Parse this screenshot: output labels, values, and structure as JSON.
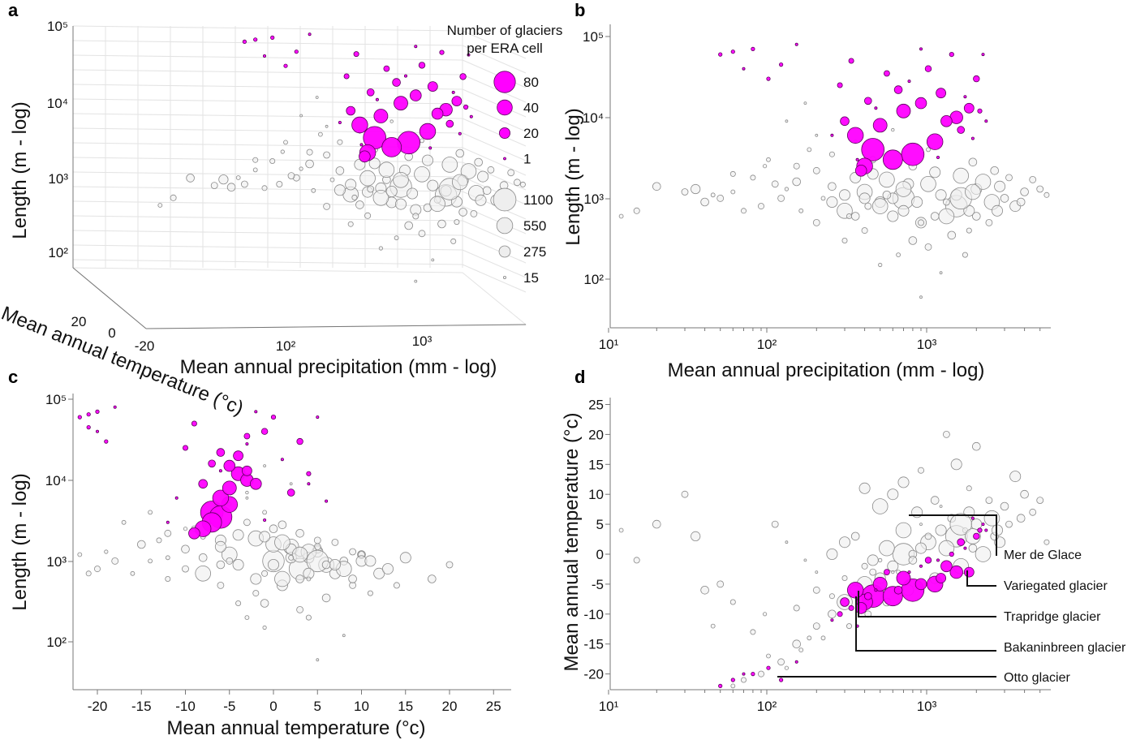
{
  "colors": {
    "surge": "#ff00ff",
    "surge_edge": "#5a005a",
    "nonsurge_fill": "#eeeeee",
    "nonsurge_edge": "#8a8a8a"
  },
  "legend": {
    "title_line1": "Number of glaciers",
    "title_line2": "per ERA cell",
    "surge_sizes": [
      "80",
      "40",
      "20",
      "1"
    ],
    "nonsurge_sizes": [
      "1100",
      "550",
      "275",
      "15"
    ]
  },
  "chart_data": [
    {
      "panel": "a",
      "type": "scatter",
      "xlabel": "Mean annual precipitation (mm - log)",
      "ylabel": "Length (m - log)",
      "zlabel": "Mean annual temperature (°c)",
      "x_scale": "log",
      "y_scale": "log",
      "x_ticks": [
        "10²",
        "10³"
      ],
      "y_ticks": [
        "10⁵",
        "10⁴",
        "10³",
        "10²"
      ],
      "z_ticks": [
        "20",
        "0",
        "-20"
      ],
      "grid": true,
      "legend": "top-right"
    },
    {
      "panel": "b",
      "type": "scatter",
      "xlabel": "Mean annual precipitation (mm - log)",
      "ylabel": "Length (m - log)",
      "x_scale": "log",
      "y_scale": "log",
      "xlim": [
        10,
        6000
      ],
      "ylim": [
        25,
        120000
      ],
      "x_ticks": [
        "10¹",
        "10²",
        "10³"
      ],
      "y_ticks": [
        "10⁵",
        "10⁴",
        "10³",
        "10²"
      ],
      "grid": false
    },
    {
      "panel": "c",
      "type": "scatter",
      "xlabel": "Mean annual temperature (°c)",
      "ylabel": "Length (m - log)",
      "x_scale": "linear",
      "y_scale": "log",
      "xlim": [
        -23,
        27
      ],
      "ylim": [
        25,
        120000
      ],
      "x_ticks": [
        "-20",
        "-15",
        "-10",
        "-5",
        "0",
        "5",
        "10",
        "15",
        "20",
        "25"
      ],
      "y_ticks": [
        "10⁵",
        "10⁴",
        "10³",
        "10²"
      ],
      "grid": false
    },
    {
      "panel": "d",
      "type": "scatter",
      "xlabel": "",
      "ylabel": "Mean annual temperature (°c)",
      "x_scale": "log",
      "y_scale": "linear",
      "xlim": [
        10,
        6000
      ],
      "ylim": [
        -23,
        27
      ],
      "x_ticks": [
        "10¹",
        "10²",
        "10³"
      ],
      "y_ticks": [
        "25",
        "20",
        "15",
        "10",
        "5",
        "0",
        "-5",
        "-10",
        "-15",
        "-20"
      ],
      "grid": false,
      "annotations": [
        "Mer de Glace",
        "Variegated glacier",
        "Trapridge glacier",
        "Bakaninbreen glacier",
        "Otto glacier"
      ]
    }
  ],
  "points_fields": [
    "precipitation_mm",
    "temperature_c",
    "length_m",
    "glacier_count"
  ],
  "surge_points": [
    [
      450,
      -7,
      4000,
      80
    ],
    [
      800,
      -6,
      3500,
      80
    ],
    [
      600,
      -7,
      3000,
      60
    ],
    [
      400,
      -8,
      2500,
      40
    ],
    [
      1100,
      -5,
      5000,
      40
    ],
    [
      350,
      -6,
      6000,
      40
    ],
    [
      500,
      -5,
      8000,
      30
    ],
    [
      700,
      -4,
      12000,
      30
    ],
    [
      1500,
      -3,
      10000,
      25
    ],
    [
      1300,
      -2,
      9000,
      20
    ],
    [
      900,
      -5,
      15000,
      20
    ],
    [
      380,
      -9,
      2200,
      20
    ],
    [
      1200,
      -4,
      20000,
      15
    ],
    [
      1800,
      -3,
      13000,
      15
    ],
    [
      300,
      -8,
      9000,
      12
    ],
    [
      650,
      -6,
      22000,
      10
    ],
    [
      420,
      -7,
      16000,
      8
    ],
    [
      1600,
      2,
      7000,
      8
    ],
    [
      2000,
      3,
      30000,
      6
    ],
    [
      1000,
      -1,
      40000,
      6
    ],
    [
      550,
      -3,
      35000,
      5
    ],
    [
      330,
      -9,
      50000,
      4
    ],
    [
      280,
      -10,
      25000,
      4
    ],
    [
      1400,
      0,
      60000,
      3
    ],
    [
      2100,
      4,
      12000,
      3
    ],
    [
      60,
      -21,
      65000,
      2
    ],
    [
      80,
      -20,
      70000,
      2
    ],
    [
      50,
      -22,
      60000,
      2
    ],
    [
      120,
      -21,
      45000,
      2
    ],
    [
      100,
      -19,
      30000,
      2
    ],
    [
      150,
      -18,
      80000,
      1
    ],
    [
      70,
      -20,
      40000,
      1
    ],
    [
      900,
      -2,
      70000,
      1
    ],
    [
      1900,
      6,
      5500,
      1
    ],
    [
      2200,
      5,
      60000,
      1
    ],
    [
      470,
      -6,
      13000,
      1
    ],
    [
      250,
      -11,
      6000,
      1
    ],
    [
      1700,
      1,
      18000,
      1
    ],
    [
      760,
      -3,
      28000,
      1
    ],
    [
      360,
      -12,
      3000,
      1
    ],
    [
      2300,
      4,
      9000,
      1
    ],
    [
      1150,
      -1,
      3200,
      1
    ]
  ],
  "nonsurge_points": [
    [
      700,
      0,
      1000,
      1100
    ],
    [
      1500,
      3,
      800,
      1100
    ],
    [
      400,
      -5,
      1200,
      550
    ],
    [
      1000,
      2,
      1500,
      550
    ],
    [
      2500,
      6,
      900,
      550
    ],
    [
      300,
      -8,
      700,
      550
    ],
    [
      600,
      -2,
      600,
      275
    ],
    [
      1200,
      4,
      1100,
      275
    ],
    [
      2000,
      5,
      1300,
      275
    ],
    [
      350,
      -6,
      1800,
      275
    ],
    [
      900,
      1,
      500,
      275
    ],
    [
      1800,
      7,
      700,
      275
    ],
    [
      500,
      -4,
      900,
      275
    ],
    [
      250,
      -10,
      1400,
      150
    ],
    [
      150,
      -15,
      1600,
      150
    ],
    [
      3000,
      8,
      1000,
      150
    ],
    [
      4000,
      10,
      1200,
      150
    ],
    [
      800,
      0,
      2500,
      150
    ],
    [
      450,
      -3,
      3000,
      100
    ],
    [
      200,
      -12,
      2200,
      100
    ],
    [
      120,
      -18,
      1000,
      100
    ],
    [
      90,
      -20,
      800,
      80
    ],
    [
      70,
      -21,
      700,
      60
    ],
    [
      60,
      -22,
      1200,
      40
    ],
    [
      100,
      -17,
      3000,
      40
    ],
    [
      180,
      -14,
      4000,
      40
    ],
    [
      20,
      5,
      1400,
      150
    ],
    [
      15,
      -1,
      700,
      80
    ],
    [
      35,
      3,
      1300,
      200
    ],
    [
      40,
      -6,
      900,
      150
    ],
    [
      50,
      -5,
      1000,
      100
    ],
    [
      30,
      10,
      1200,
      100
    ],
    [
      110,
      5,
      1500,
      100
    ],
    [
      60,
      -8,
      2000,
      60
    ],
    [
      250,
      0,
      900,
      275
    ],
    [
      300,
      2,
      1100,
      275
    ],
    [
      350,
      3,
      600,
      150
    ],
    [
      500,
      8,
      800,
      550
    ],
    [
      600,
      10,
      1000,
      275
    ],
    [
      700,
      12,
      700,
      275
    ],
    [
      1500,
      15,
      1100,
      275
    ],
    [
      2000,
      18,
      600,
      150
    ],
    [
      1300,
      20,
      900,
      100
    ],
    [
      900,
      14,
      500,
      80
    ],
    [
      400,
      11,
      1000,
      275
    ],
    [
      3500,
      13,
      800,
      275
    ],
    [
      5000,
      9,
      1300,
      100
    ],
    [
      4500,
      7,
      1700,
      100
    ],
    [
      2800,
      2,
      1400,
      275
    ],
    [
      2200,
      0,
      1600,
      550
    ],
    [
      1600,
      -2,
      1900,
      550
    ],
    [
      1100,
      -4,
      2100,
      275
    ],
    [
      750,
      -6,
      1500,
      275
    ],
    [
      550,
      -8,
      1100,
      150
    ],
    [
      420,
      -10,
      800,
      100
    ],
    [
      320,
      -12,
      600,
      60
    ],
    [
      220,
      -14,
      1000,
      40
    ],
    [
      160,
      -16,
      700,
      40
    ],
    [
      130,
      -19,
      1300,
      30
    ],
    [
      800,
      -1,
      300,
      150
    ],
    [
      1000,
      3,
      250,
      100
    ],
    [
      1400,
      6,
      350,
      150
    ],
    [
      1700,
      4,
      200,
      60
    ],
    [
      650,
      -3,
      200,
      40
    ],
    [
      500,
      -1,
      150,
      30
    ],
    [
      1200,
      8,
      120,
      15
    ],
    [
      900,
      5,
      60,
      15
    ],
    [
      400,
      -2,
      400,
      80
    ],
    [
      300,
      -4,
      300,
      60
    ],
    [
      200,
      -6,
      500,
      100
    ],
    [
      150,
      -9,
      2500,
      80
    ],
    [
      250,
      -7,
      3500,
      60
    ],
    [
      350,
      -5,
      5000,
      30
    ],
    [
      600,
      -3,
      7000,
      20
    ],
    [
      1000,
      -1,
      4000,
      40
    ],
    [
      1900,
      1,
      2800,
      150
    ],
    [
      2600,
      3,
      2200,
      150
    ],
    [
      3200,
      5,
      1800,
      100
    ],
    [
      2400,
      9,
      500,
      100
    ],
    [
      1800,
      11,
      400,
      60
    ],
    [
      1100,
      9,
      600,
      150
    ],
    [
      850,
      7,
      900,
      275
    ],
    [
      700,
      4,
      1300,
      550
    ],
    [
      550,
      1,
      1700,
      550
    ],
    [
      450,
      -1,
      2000,
      275
    ],
    [
      1300,
      1,
      600,
      550
    ],
    [
      1600,
      5,
      1000,
      1100
    ],
    [
      1900,
      3,
      1200,
      550
    ],
    [
      2700,
      4,
      700,
      275
    ],
    [
      3800,
      6,
      900,
      150
    ],
    [
      5500,
      2,
      1100,
      60
    ],
    [
      12,
      4,
      600,
      40
    ],
    [
      45,
      -12,
      1100,
      40
    ],
    [
      80,
      -13,
      1800,
      60
    ],
    [
      95,
      -10,
      2500,
      30
    ],
    [
      200,
      -3,
      6000,
      15
    ],
    [
      130,
      2,
      9000,
      15
    ],
    [
      170,
      -1,
      15000,
      15
    ]
  ]
}
